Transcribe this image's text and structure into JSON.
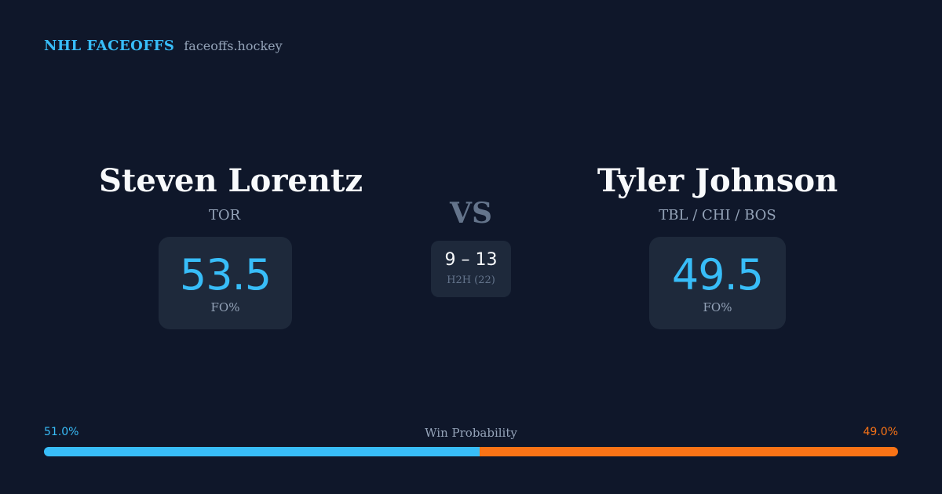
{
  "brand": {
    "name": "NHL FACEOFFS",
    "url": "faceoffs.hockey"
  },
  "players": {
    "left": {
      "name": "Steven Lorentz",
      "team": "TOR",
      "fo_value": "53.5",
      "fo_label": "FO%"
    },
    "right": {
      "name": "Tyler Johnson",
      "team": "TBL / CHI / BOS",
      "fo_value": "49.5",
      "fo_label": "FO%"
    }
  },
  "matchup": {
    "vs": "VS",
    "h2h_score": "9 – 13",
    "h2h_label": "H2H (22)"
  },
  "win_probability": {
    "title": "Win Probability",
    "left_label": "51.0%",
    "right_label": "49.0%",
    "left_fraction": 0.51,
    "right_fraction": 0.49
  },
  "colors": {
    "background": "#0f172a",
    "card": "#1e293b",
    "accent_blue": "#38bdf8",
    "accent_orange": "#f97316",
    "muted": "#94a3b8",
    "text": "#f8fafc"
  }
}
